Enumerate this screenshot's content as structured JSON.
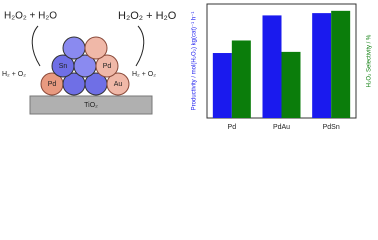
{
  "chart_data": {
    "type": "bar",
    "categories": [
      "Pd",
      "PdAu",
      "PdSn"
    ],
    "series": [
      {
        "name": "Productivity",
        "color": "#1a1aee",
        "values": [
          57,
          90,
          92
        ]
      },
      {
        "name": "H₂O₂ Selectivity",
        "color": "#0b7d0b",
        "values": [
          68,
          58,
          94
        ],
        "axis": "y2"
      }
    ],
    "ylabel": "Productivity / mol(H₂O₂) kg(cat)⁻¹ h⁻¹",
    "y2label": "H₂O₂ Selectivity / %",
    "ylim": [
      0,
      100
    ],
    "y2lim": [
      0,
      100
    ]
  },
  "diagram": {
    "left_product": "H₂O₂ + H₂O",
    "right_product": "H₂O₂ + H₂O",
    "left_reactant": "H₂ + O₂",
    "right_reactant": "H₂ + O₂",
    "atoms": [
      "Sn",
      "Pd",
      "Pd",
      "Au"
    ],
    "support": "TiO₂"
  }
}
